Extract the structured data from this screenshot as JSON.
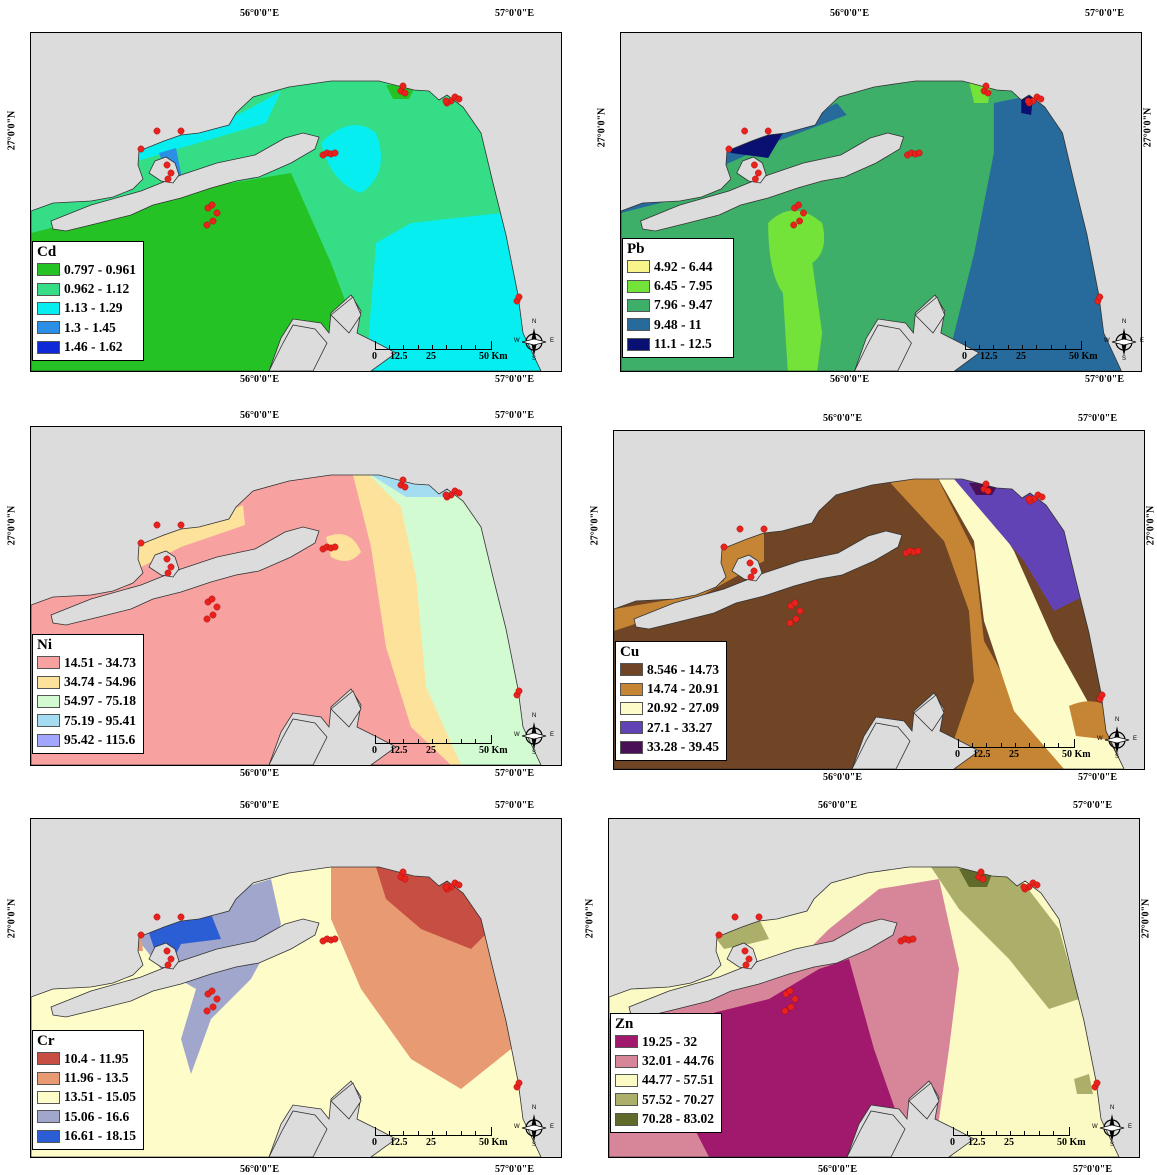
{
  "coords": {
    "lon1": "56°0'0\"E",
    "lon2": "57°0'0\"E",
    "lat": "27°0'0\"N"
  },
  "scale": {
    "t0": "0",
    "t1": "12.5",
    "t2": "25",
    "t3": "50 Km"
  },
  "compass": {
    "n": "N",
    "s": "S",
    "e": "E",
    "w": "W"
  },
  "colors": {
    "land": "#dcdcdc",
    "sample_point": "#e8231e"
  },
  "panels": [
    {
      "id": "cd",
      "title": "Cd",
      "classes": [
        {
          "label": "0.797 - 0.961",
          "color": "#24c224"
        },
        {
          "label": "0.962 - 1.12",
          "color": "#35de86"
        },
        {
          "label": "1.13 - 1.29",
          "color": "#07eef0"
        },
        {
          "label": "1.3 - 1.45",
          "color": "#2b8fe5"
        },
        {
          "label": "1.46 - 1.62",
          "color": "#0f28d8"
        }
      ]
    },
    {
      "id": "pb",
      "title": "Pb",
      "classes": [
        {
          "label": "4.92 - 6.44",
          "color": "#f7f58a"
        },
        {
          "label": "6.45 - 7.95",
          "color": "#74e339"
        },
        {
          "label": "7.96 - 9.47",
          "color": "#3daf69"
        },
        {
          "label": "9.48 - 11",
          "color": "#266b9c"
        },
        {
          "label": "11.1 - 12.5",
          "color": "#0a0f72"
        }
      ]
    },
    {
      "id": "ni",
      "title": "Ni",
      "classes": [
        {
          "label": "14.51 - 34.73",
          "color": "#f7a1a1"
        },
        {
          "label": "34.74 - 54.96",
          "color": "#fce29b"
        },
        {
          "label": "54.97 - 75.18",
          "color": "#d3fbd2"
        },
        {
          "label": "75.19 - 95.41",
          "color": "#a4ddf2"
        },
        {
          "label": "95.42 - 115.6",
          "color": "#a3a6ff"
        }
      ]
    },
    {
      "id": "cu",
      "title": "Cu",
      "classes": [
        {
          "label": "8.546 - 14.73",
          "color": "#6f4525"
        },
        {
          "label": "14.74 - 20.91",
          "color": "#c68534"
        },
        {
          "label": "20.92 - 27.09",
          "color": "#fdfcc9"
        },
        {
          "label": "27.1 - 33.27",
          "color": "#6243b6"
        },
        {
          "label": "33.28 - 39.45",
          "color": "#4a1057"
        }
      ]
    },
    {
      "id": "cr",
      "title": "Cr",
      "classes": [
        {
          "label": "10.4 - 11.95",
          "color": "#c64e42"
        },
        {
          "label": "11.96 - 13.5",
          "color": "#e89b72"
        },
        {
          "label": "13.51 - 15.05",
          "color": "#fefdc9"
        },
        {
          "label": "15.06 - 16.6",
          "color": "#a0a6cc"
        },
        {
          "label": "16.61 - 18.15",
          "color": "#2b5ed4"
        }
      ]
    },
    {
      "id": "zn",
      "title": "Zn",
      "classes": [
        {
          "label": "19.25 - 32",
          "color": "#a0196d"
        },
        {
          "label": "32.01 - 44.76",
          "color": "#d78599"
        },
        {
          "label": "44.77 - 57.51",
          "color": "#fbfac5"
        },
        {
          "label": "57.52 - 70.27",
          "color": "#acaf6a"
        },
        {
          "label": "70.28 - 83.02",
          "color": "#5f6a2b"
        }
      ]
    }
  ]
}
